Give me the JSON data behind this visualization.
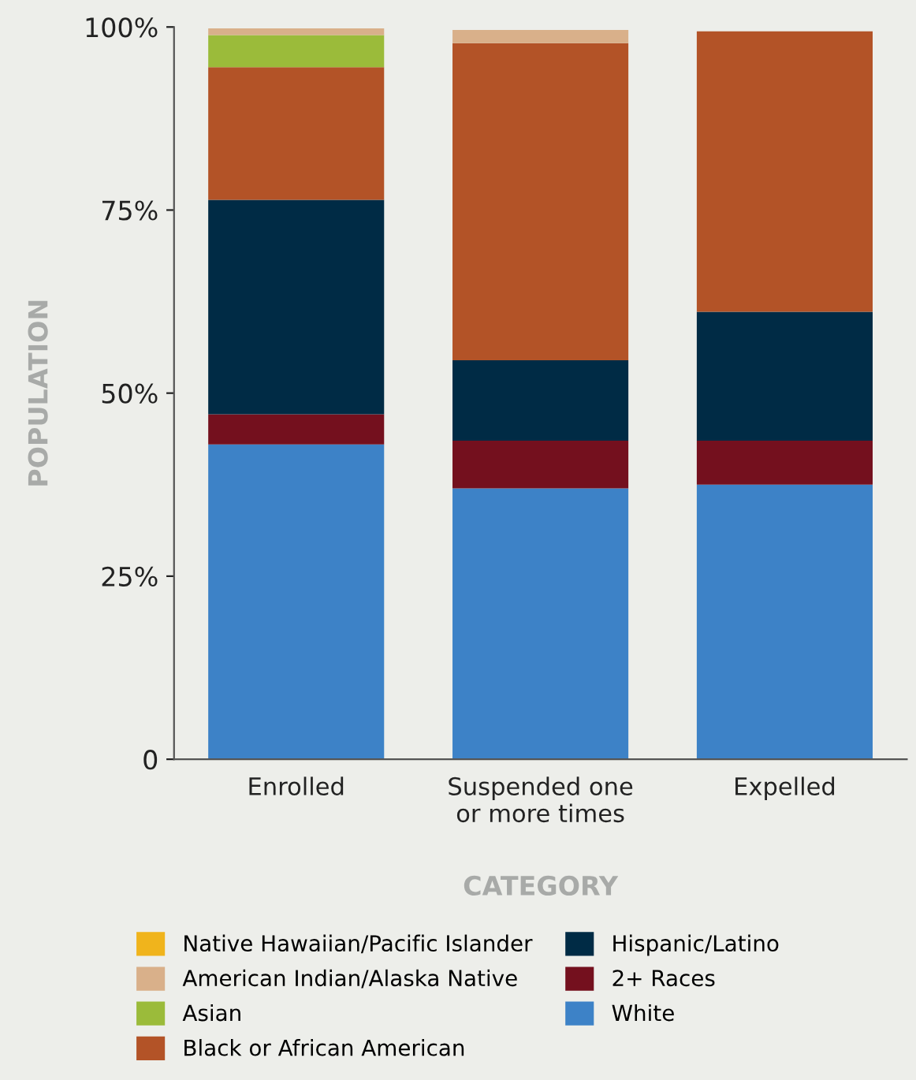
{
  "chart_data": {
    "type": "bar",
    "stacked": true,
    "xlabel": "CATEGORY",
    "ylabel": "POPULATION",
    "categories": [
      "Enrolled",
      "Suspended one\nor more times",
      "Expelled"
    ],
    "series": [
      {
        "name": "White",
        "color": "#3d82c7",
        "values": [
          43.0,
          37.0,
          37.5
        ]
      },
      {
        "name": "2+ Races",
        "color": "#74101e",
        "values": [
          4.1,
          6.5,
          6.0
        ]
      },
      {
        "name": "Hispanic/Latino",
        "color": "#002b45",
        "values": [
          29.3,
          11.0,
          17.6
        ]
      },
      {
        "name": "Black or African American",
        "color": "#b35327",
        "values": [
          18.1,
          43.3,
          38.3
        ]
      },
      {
        "name": "Asian",
        "color": "#9bbb3a",
        "values": [
          4.4,
          0,
          0
        ]
      },
      {
        "name": "American Indian/Alaska Native",
        "color": "#d9b08a",
        "values": [
          0.9,
          1.8,
          0
        ]
      },
      {
        "name": "Native Hawaiian/Pacific Islander",
        "color": "#f0b41c",
        "values": [
          0,
          0,
          0
        ]
      }
    ],
    "ylim": [
      0,
      100
    ],
    "yticks": [
      0,
      {
        "value": 25,
        "label": "25%"
      },
      {
        "value": 50,
        "label": "50%"
      },
      {
        "value": 75,
        "label": "75%"
      },
      {
        "value": 100,
        "label": "100%"
      }
    ],
    "legend": "bottom"
  }
}
